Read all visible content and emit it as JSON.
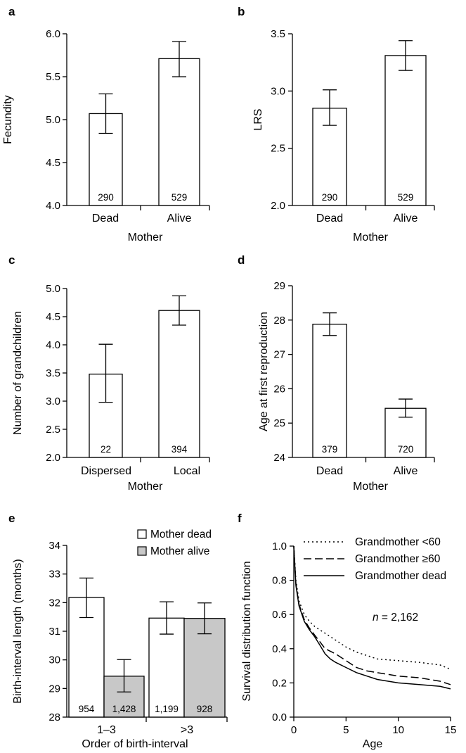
{
  "colors": {
    "open_bar": "#ffffff",
    "alive_bar": "#c8c8c8",
    "ink": "#000000"
  },
  "chart_data": [
    {
      "panel": "a",
      "type": "bar",
      "categories": [
        "Dead",
        "Alive"
      ],
      "values": [
        5.07,
        5.71
      ],
      "error_low": [
        4.84,
        5.5
      ],
      "error_high": [
        5.3,
        5.91
      ],
      "n_labels": [
        "290",
        "529"
      ],
      "xlabel": "Mother",
      "ylabel": "Fecundity",
      "ylim": [
        4.0,
        6.0
      ],
      "yticks": [
        "4.0",
        "4.5",
        "5.0",
        "5.5",
        "6.0"
      ]
    },
    {
      "panel": "b",
      "type": "bar",
      "categories": [
        "Dead",
        "Alive"
      ],
      "values": [
        2.85,
        3.31
      ],
      "error_low": [
        2.7,
        3.18
      ],
      "error_high": [
        3.01,
        3.44
      ],
      "n_labels": [
        "290",
        "529"
      ],
      "xlabel": "Mother",
      "ylabel": "LRS",
      "ylim": [
        2.0,
        3.5
      ],
      "yticks": [
        "2.0",
        "2.5",
        "3.0",
        "3.5"
      ]
    },
    {
      "panel": "c",
      "type": "bar",
      "categories": [
        "Dispersed",
        "Local"
      ],
      "values": [
        3.48,
        4.61
      ],
      "error_low": [
        2.98,
        4.35
      ],
      "error_high": [
        4.01,
        4.87
      ],
      "n_labels": [
        "22",
        "394"
      ],
      "xlabel": "Mother",
      "ylabel": "Number of grandchildren",
      "ylim": [
        2.0,
        5.0
      ],
      "yticks": [
        "2.0",
        "2.5",
        "3.0",
        "3.5",
        "4.0",
        "4.5",
        "5.0"
      ]
    },
    {
      "panel": "d",
      "type": "bar",
      "categories": [
        "Dead",
        "Alive"
      ],
      "values": [
        27.88,
        25.43
      ],
      "error_low": [
        27.55,
        25.17
      ],
      "error_high": [
        28.21,
        25.7
      ],
      "n_labels": [
        "379",
        "720"
      ],
      "xlabel": "Mother",
      "ylabel": "Age at first reproduction",
      "ylim": [
        24,
        29
      ],
      "yticks": [
        "24",
        "25",
        "26",
        "27",
        "28",
        "29"
      ]
    },
    {
      "panel": "e",
      "type": "bar",
      "categories": [
        "1–3",
        ">3"
      ],
      "series": [
        {
          "name": "Mother dead",
          "values": [
            32.18,
            31.46
          ],
          "error_low": [
            31.48,
            30.9
          ],
          "error_high": [
            32.86,
            32.03
          ],
          "n_labels": [
            "954",
            "1,199"
          ]
        },
        {
          "name": "Mother alive",
          "values": [
            29.43,
            31.45
          ],
          "error_low": [
            28.88,
            30.91
          ],
          "error_high": [
            30.01,
            31.99
          ],
          "n_labels": [
            "1,428",
            "928"
          ]
        }
      ],
      "xlabel": "Order of birth-interval",
      "ylabel": "Birth-interval length (months)",
      "ylim": [
        28,
        34
      ],
      "yticks": [
        "28",
        "29",
        "30",
        "31",
        "32",
        "33",
        "34"
      ]
    },
    {
      "panel": "f",
      "type": "line",
      "xlabel": "Age",
      "ylabel": "Survival distribution function",
      "xlim": [
        0,
        15
      ],
      "ylim": [
        0.0,
        1.0
      ],
      "xticks": [
        "0",
        "5",
        "10",
        "15"
      ],
      "yticks": [
        "0.0",
        "0.2",
        "0.4",
        "0.6",
        "0.8",
        "1.0"
      ],
      "annotation_italic": "n",
      "annotation_rest": " = 2,162",
      "series": [
        {
          "name": "Grandmother <60",
          "style": "dotted",
          "x": [
            0,
            0.2,
            0.5,
            1,
            1.5,
            2,
            2.5,
            3,
            4,
            5,
            6,
            7,
            8,
            10,
            12,
            14,
            15
          ],
          "y": [
            1.0,
            0.8,
            0.68,
            0.6,
            0.56,
            0.53,
            0.51,
            0.49,
            0.45,
            0.41,
            0.38,
            0.36,
            0.34,
            0.33,
            0.32,
            0.305,
            0.28
          ]
        },
        {
          "name": "Grandmother ≥60",
          "style": "dashed",
          "x": [
            0,
            0.2,
            0.5,
            1,
            1.5,
            2,
            2.5,
            3,
            4,
            5,
            6,
            7,
            8,
            10,
            12,
            14,
            15
          ],
          "y": [
            1.0,
            0.78,
            0.66,
            0.57,
            0.52,
            0.48,
            0.44,
            0.4,
            0.37,
            0.33,
            0.29,
            0.27,
            0.26,
            0.24,
            0.23,
            0.21,
            0.19
          ]
        },
        {
          "name": "Grandmother dead",
          "style": "solid",
          "x": [
            0,
            0.2,
            0.5,
            1,
            1.5,
            2,
            2.5,
            3,
            3.5,
            4,
            5,
            6,
            7,
            8,
            10,
            12,
            14,
            15
          ],
          "y": [
            1.0,
            0.77,
            0.65,
            0.56,
            0.51,
            0.47,
            0.42,
            0.37,
            0.34,
            0.32,
            0.29,
            0.26,
            0.24,
            0.22,
            0.2,
            0.19,
            0.18,
            0.165
          ]
        }
      ]
    }
  ]
}
